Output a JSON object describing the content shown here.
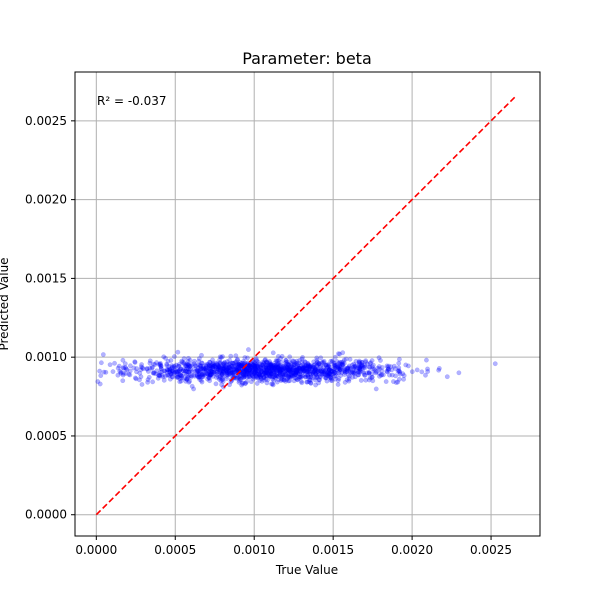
{
  "chart_data": {
    "type": "scatter",
    "title": "Parameter: beta",
    "xlabel": "True Value",
    "ylabel": "Predicted Value",
    "xlim": [
      -0.000135,
      0.00281
    ],
    "ylim": [
      -0.000135,
      0.00281
    ],
    "x_ticks": [
      0.0,
      0.0005,
      0.001,
      0.0015,
      0.002,
      0.0025
    ],
    "x_tick_labels": [
      "0.0000",
      "0.0005",
      "0.0010",
      "0.0015",
      "0.0020",
      "0.0025"
    ],
    "y_ticks": [
      0.0,
      0.0005,
      0.001,
      0.0015,
      0.002,
      0.0025
    ],
    "y_tick_labels": [
      "0.0000",
      "0.0005",
      "0.0010",
      "0.0015",
      "0.0020",
      "0.0025"
    ],
    "grid": true,
    "annotation": "R² = -0.037",
    "reference_line": {
      "x": [
        0.0,
        0.00266
      ],
      "y": [
        0.0,
        0.00266
      ],
      "color": "#ff0000",
      "style": "dashed"
    },
    "scatter": {
      "color": "#0000ff",
      "alpha": 0.3,
      "point_count": 1400,
      "x_range": [
        0.0,
        0.00266
      ],
      "x_mean": 0.00105,
      "x_sd": 0.00042,
      "y_mean": 0.000915,
      "y_sd": 3.5e-05
    }
  }
}
